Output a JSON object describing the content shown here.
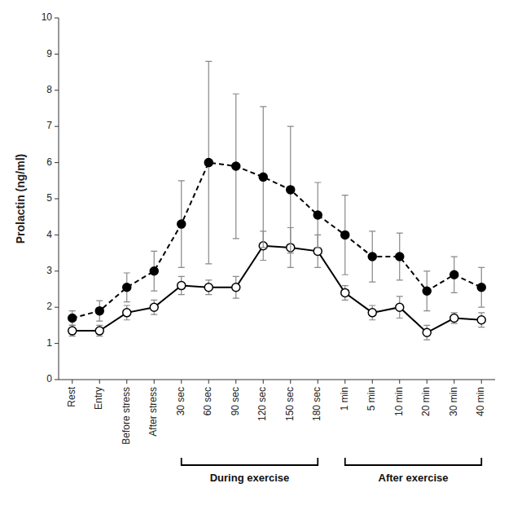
{
  "chart_data": {
    "type": "line",
    "ylabel": "Prolactin (ng/ml)",
    "categories": [
      "Rest",
      "Entry",
      "Before stress",
      "After stress",
      "30 sec",
      "60 sec",
      "90 sec",
      "120 sec",
      "150 sec",
      "180 sec",
      "1 min",
      "5 min",
      "10 min",
      "20 min",
      "30 min",
      "40 min"
    ],
    "series": [
      {
        "values": [
          1.7,
          1.9,
          2.55,
          3.0,
          4.3,
          6.0,
          5.9,
          5.6,
          5.25,
          4.55,
          4.0,
          3.4,
          3.4,
          2.45,
          2.9,
          2.55
        ],
        "errors": [
          0.2,
          0.28,
          0.4,
          0.55,
          1.2,
          2.8,
          2.0,
          1.95,
          1.75,
          0.9,
          1.1,
          0.7,
          0.65,
          0.55,
          0.5,
          0.55
        ],
        "color": "#000000",
        "marker": "circle",
        "line_style": "dashed"
      },
      {
        "values": [
          1.35,
          1.35,
          1.85,
          2.0,
          2.6,
          2.55,
          2.55,
          3.7,
          3.65,
          3.55,
          2.4,
          1.85,
          2.0,
          1.3,
          1.7,
          1.65
        ],
        "errors": [
          0.15,
          0.15,
          0.2,
          0.2,
          0.25,
          0.2,
          0.3,
          0.4,
          0.55,
          0.45,
          0.2,
          0.2,
          0.3,
          0.2,
          0.15,
          0.2
        ],
        "color": "#000000",
        "marker": "open-circle",
        "line_style": "solid"
      }
    ],
    "ylim": [
      0,
      10
    ],
    "yticks": [
      0,
      1,
      2,
      3,
      4,
      5,
      6,
      7,
      8,
      9,
      10
    ],
    "grid": false,
    "annotations": [
      {
        "text": "During exercise",
        "from": "30 sec",
        "to": "180 sec"
      },
      {
        "text": "After exercise",
        "from": "1 min",
        "to": "40 min"
      }
    ]
  }
}
